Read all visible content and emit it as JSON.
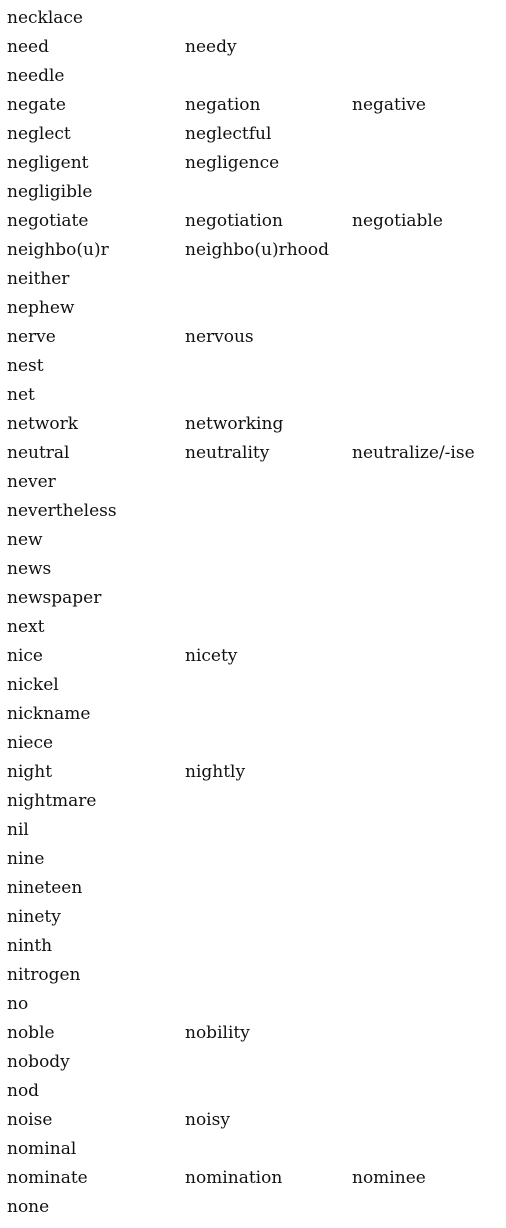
{
  "rows": [
    [
      "necklace"
    ],
    [
      "need",
      "needy"
    ],
    [
      "needle"
    ],
    [
      "negate",
      "negation",
      "negative"
    ],
    [
      "neglect",
      "neglectful"
    ],
    [
      "negligent",
      "negligence"
    ],
    [
      "negligible"
    ],
    [
      "negotiate",
      "negotiation",
      "negotiable"
    ],
    [
      "neighbo(u)r",
      "neighbo(u)rhood"
    ],
    [
      "neither"
    ],
    [
      "nephew"
    ],
    [
      "nerve",
      "nervous"
    ],
    [
      "nest"
    ],
    [
      "net"
    ],
    [
      "network",
      "networking"
    ],
    [
      "neutral",
      "neutrality",
      "neutralize/-ise"
    ],
    [
      "never"
    ],
    [
      "nevertheless"
    ],
    [
      "new"
    ],
    [
      "news"
    ],
    [
      "newspaper"
    ],
    [
      "next"
    ],
    [
      "nice",
      "nicety"
    ],
    [
      "nickel"
    ],
    [
      "nickname"
    ],
    [
      "niece"
    ],
    [
      "night",
      "nightly"
    ],
    [
      "nightmare"
    ],
    [
      "nil"
    ],
    [
      "nine"
    ],
    [
      "nineteen"
    ],
    [
      "ninety"
    ],
    [
      "ninth"
    ],
    [
      "nitrogen"
    ],
    [
      "no"
    ],
    [
      "noble",
      "nobility"
    ],
    [
      "nobody"
    ],
    [
      "nod"
    ],
    [
      "noise",
      "noisy"
    ],
    [
      "nominal"
    ],
    [
      "nominate",
      "nomination",
      "nominee"
    ],
    [
      "none"
    ]
  ]
}
